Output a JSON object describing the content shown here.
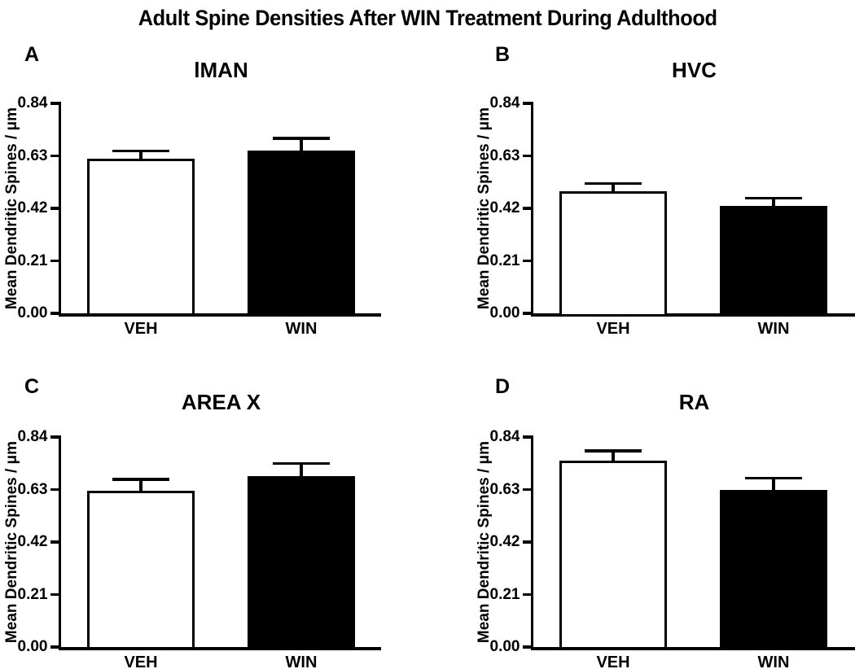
{
  "figure_title": "Adult Spine Densities After WIN Treatment During Adulthood",
  "colors": {
    "background": "#ffffff",
    "axis": "#000000",
    "text": "#000000",
    "veh_bar_fill": "#ffffff",
    "win_bar_fill": "#000000",
    "bar_outline": "#000000"
  },
  "chart_data": [
    {
      "type": "bar",
      "panel_letter": "A",
      "title": "lMAN",
      "ylabel": "Mean Dendritic Spines / μm",
      "categories": [
        "VEH",
        "WIN"
      ],
      "values": [
        0.62,
        0.65
      ],
      "errors_plus": [
        0.03,
        0.05
      ],
      "ylim": [
        0,
        0.84
      ],
      "yticks": [
        0,
        0.21,
        0.42,
        0.63,
        0.84
      ],
      "ytick_labels": [
        "0.00",
        "0.21",
        "0.42",
        "0.63",
        "0.84"
      ],
      "bar_fills": [
        "#ffffff",
        "#000000"
      ],
      "grid": false,
      "legend": "none"
    },
    {
      "type": "bar",
      "panel_letter": "B",
      "title": "HVC",
      "ylabel": "Mean Dendritic Spines / μm",
      "categories": [
        "VEH",
        "WIN"
      ],
      "values": [
        0.49,
        0.43
      ],
      "errors_plus": [
        0.03,
        0.03
      ],
      "ylim": [
        0,
        0.84
      ],
      "yticks": [
        0,
        0.21,
        0.42,
        0.63,
        0.84
      ],
      "ytick_labels": [
        "0.00",
        "0.21",
        "0.42",
        "0.63",
        "0.84"
      ],
      "bar_fills": [
        "#ffffff",
        "#000000"
      ],
      "grid": false,
      "legend": "none"
    },
    {
      "type": "bar",
      "panel_letter": "C",
      "title": "AREA X",
      "ylabel": "Mean Dendritic Spines / μm",
      "categories": [
        "VEH",
        "WIN"
      ],
      "values": [
        0.625,
        0.685
      ],
      "errors_plus": [
        0.045,
        0.05
      ],
      "ylim": [
        0,
        0.84
      ],
      "yticks": [
        0,
        0.21,
        0.42,
        0.63,
        0.84
      ],
      "ytick_labels": [
        "0.00",
        "0.21",
        "0.42",
        "0.63",
        "0.84"
      ],
      "bar_fills": [
        "#ffffff",
        "#000000"
      ],
      "grid": false,
      "legend": "none"
    },
    {
      "type": "bar",
      "panel_letter": "D",
      "title": "RA",
      "ylabel": "Mean Dendritic Spines / μm",
      "categories": [
        "VEH",
        "WIN"
      ],
      "values": [
        0.745,
        0.63
      ],
      "errors_plus": [
        0.04,
        0.045
      ],
      "ylim": [
        0,
        0.84
      ],
      "yticks": [
        0,
        0.21,
        0.42,
        0.63,
        0.84
      ],
      "ytick_labels": [
        "0.00",
        "0.21",
        "0.42",
        "0.63",
        "0.84"
      ],
      "bar_fills": [
        "#ffffff",
        "#000000"
      ],
      "grid": false,
      "legend": "none"
    }
  ]
}
